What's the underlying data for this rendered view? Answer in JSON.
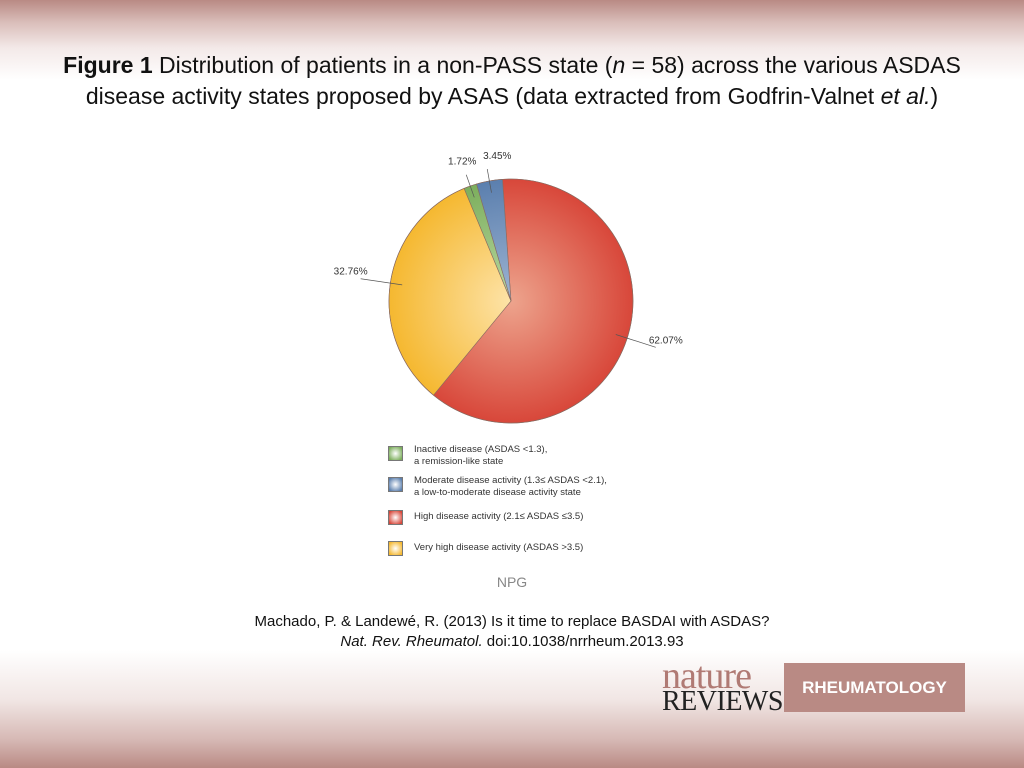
{
  "title": {
    "figure_label": "Figure 1",
    "text_part1": " Distribution of patients in a non-PASS state (",
    "n_symbol": "n",
    "text_part2": " = 58) across the various ASDAS disease activity states proposed by ASAS (data extracted from Godfrin-Valnet ",
    "etal": "et al.",
    "text_part3": ")"
  },
  "chart_data": {
    "type": "pie",
    "start_angle_deg": -4,
    "direction": "clockwise",
    "slices": [
      {
        "label": "High disease activity (2.1≤ ASDAS ≤3.5)",
        "value": 62.07,
        "value_label": "62.07%",
        "color": "#d8473a",
        "inner_color": "#eda48d"
      },
      {
        "label": "Very high disease activity (ASDAS >3.5)",
        "value": 32.76,
        "value_label": "32.76%",
        "color": "#f5b830",
        "inner_color": "#fde3a8"
      },
      {
        "label": "Inactive disease (ASDAS <1.3), a remission-like state",
        "value": 1.72,
        "value_label": "1.72%",
        "color": "#7cae5c",
        "inner_color": "#b9d8a2"
      },
      {
        "label": "Moderate disease activity (1.3≤ ASDAS <2.1), a low-to-moderate disease activity state",
        "value": 3.45,
        "value_label": "3.45%",
        "color": "#5b7fae",
        "inner_color": "#9db4d2"
      }
    ]
  },
  "legend": [
    {
      "line1": "Inactive disease (ASDAS <1.3),",
      "line2": "a remission-like state",
      "color": "#7cae5c"
    },
    {
      "line1": "Moderate disease activity (1.3≤ ASDAS <2.1),",
      "line2": "a low-to-moderate disease activity state",
      "color": "#5b7fae"
    },
    {
      "line1": "High disease activity (2.1≤ ASDAS ≤3.5)",
      "line2": "",
      "color": "#d8473a"
    },
    {
      "line1": "Very high disease activity (ASDAS >3.5)",
      "line2": "",
      "color": "#f5b830"
    }
  ],
  "source": "NPG",
  "citation": {
    "line1": "Machado, P. & Landewé, R. (2013) Is it time to replace BASDAI with ASDAS?",
    "journal": "Nat. Rev. Rheumatol.",
    "doi": " doi:10.1038/nrrheum.2013.93"
  },
  "logo": {
    "nature": "nature",
    "reviews": "REVIEWS",
    "box": "RHEUMATOLOGY"
  }
}
